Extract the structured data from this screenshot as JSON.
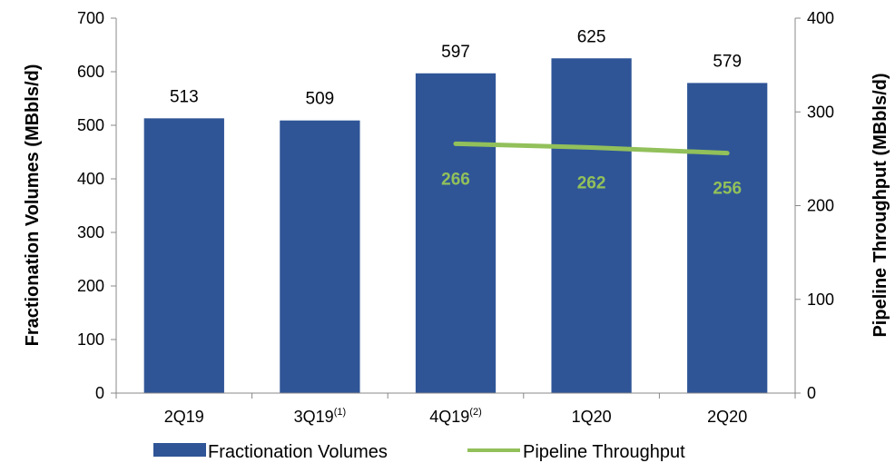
{
  "chart_data": {
    "type": "bar",
    "categories": [
      "2Q19",
      "3Q19",
      "4Q19",
      "1Q20",
      "2Q20"
    ],
    "category_superscripts": [
      "",
      "(1)",
      "(2)",
      "",
      ""
    ],
    "series": [
      {
        "name": "Fractionation Volumes",
        "type": "bar",
        "axis": "left",
        "color": "#2F5597",
        "values": [
          513,
          509,
          597,
          625,
          579
        ],
        "labels": [
          "513",
          "509",
          "597",
          "625",
          "579"
        ]
      },
      {
        "name": "Pipeline Throughput",
        "type": "line",
        "axis": "right",
        "color": "#92C05A",
        "values": [
          null,
          null,
          266,
          262,
          256
        ],
        "labels": [
          "",
          "",
          "266",
          "262",
          "256"
        ]
      }
    ],
    "ylabel": "Fractionation Volumes (MBbls/d)",
    "y2label": "Pipeline Throughput (MBbls/d)",
    "ylim": [
      0,
      700
    ],
    "y2lim": [
      0,
      400
    ],
    "yticks": [
      0,
      100,
      200,
      300,
      400,
      500,
      600,
      700
    ],
    "yticklabels": [
      "0",
      "100",
      "200",
      "300",
      "400",
      "500",
      "600",
      "700"
    ],
    "y2ticks": [
      0,
      100,
      200,
      300,
      400
    ],
    "y2ticklabels": [
      "0",
      "100",
      "200",
      "300",
      "400"
    ],
    "grid": false,
    "legend": "bottom"
  }
}
